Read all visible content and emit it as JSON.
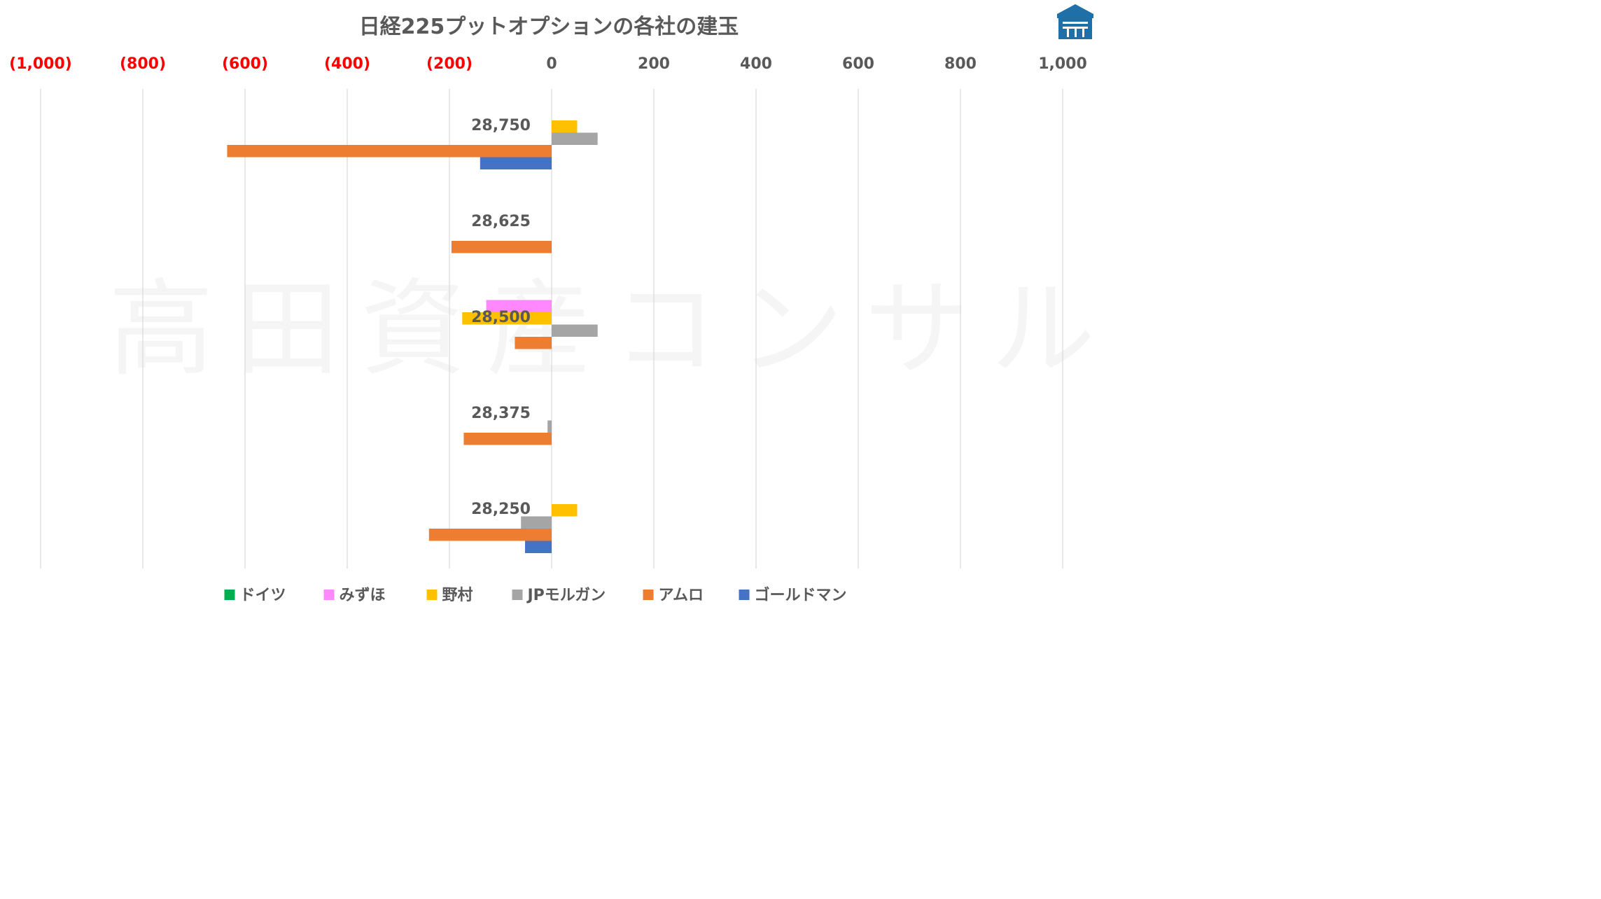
{
  "chart_data": {
    "type": "bar",
    "orientation": "horizontal",
    "title": "日経225プットオプションの各社の建玉",
    "xlim": [
      -1000,
      1000
    ],
    "x_ticks": [
      {
        "value": -1000,
        "label": "(1,000)"
      },
      {
        "value": -800,
        "label": "(800)"
      },
      {
        "value": -600,
        "label": "(600)"
      },
      {
        "value": -400,
        "label": "(400)"
      },
      {
        "value": -200,
        "label": "(200)"
      },
      {
        "value": 0,
        "label": "0"
      },
      {
        "value": 200,
        "label": "200"
      },
      {
        "value": 400,
        "label": "400"
      },
      {
        "value": 600,
        "label": "600"
      },
      {
        "value": 800,
        "label": "800"
      },
      {
        "value": 1000,
        "label": "1,000"
      }
    ],
    "categories": [
      "28,750",
      "28,625",
      "28,500",
      "28,375",
      "28,250"
    ],
    "series": [
      {
        "name": "ドイツ",
        "color": "#00B050",
        "values": [
          0,
          0,
          0,
          0,
          0
        ]
      },
      {
        "name": "みずほ",
        "color": "#FF88FF",
        "values": [
          0,
          0,
          -128,
          0,
          0
        ]
      },
      {
        "name": "野村",
        "color": "#FFC000",
        "values": [
          50,
          0,
          -175,
          0,
          50
        ]
      },
      {
        "name": "JPモルガン",
        "color": "#A5A5A5",
        "values": [
          90,
          0,
          90,
          -8,
          -60
        ]
      },
      {
        "name": "アムロ",
        "color": "#ED7D31",
        "values": [
          -635,
          -196,
          -72,
          -172,
          -240
        ]
      },
      {
        "name": "ゴールドマン",
        "color": "#4472C4",
        "values": [
          -140,
          0,
          0,
          0,
          -52
        ]
      }
    ],
    "grid": true,
    "legend_position": "bottom",
    "negative_tick_color": "#FF0000",
    "positive_tick_color": "#595959"
  },
  "watermark": "高田資産コンサル",
  "logo": "takada-logo-icon"
}
